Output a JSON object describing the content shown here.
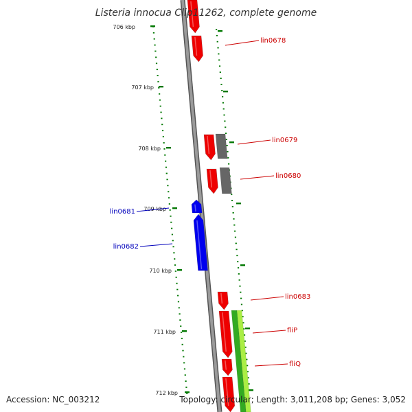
{
  "title": "Listeria innocua Clip11262, complete genome",
  "footer": {
    "accession": "Accession: NC_003212",
    "topology": "Topology: circular; Length: 3,011,208 bp; Genes: 3,052"
  },
  "ticks": {
    "labels": [
      "706 kbp",
      "707 kbp",
      "708 kbp",
      "709 kbp",
      "710 kbp",
      "711 kbp",
      "712 kbp"
    ]
  },
  "genes": {
    "labels": [
      "lin0678",
      "lin0679",
      "lin0680",
      "lin0681",
      "lin0682",
      "lin0683",
      "fliP",
      "fliQ"
    ]
  },
  "colors": {
    "forward_gene": "#ee0000",
    "reverse_gene": "#0000ee",
    "grey_gene": "#666666",
    "green_feature": "#33aa22",
    "lime_feature": "#aaee44",
    "tick": "#007700",
    "backbone": "#888888",
    "forward_label": "#cc0000",
    "reverse_label": "#0000bb"
  }
}
